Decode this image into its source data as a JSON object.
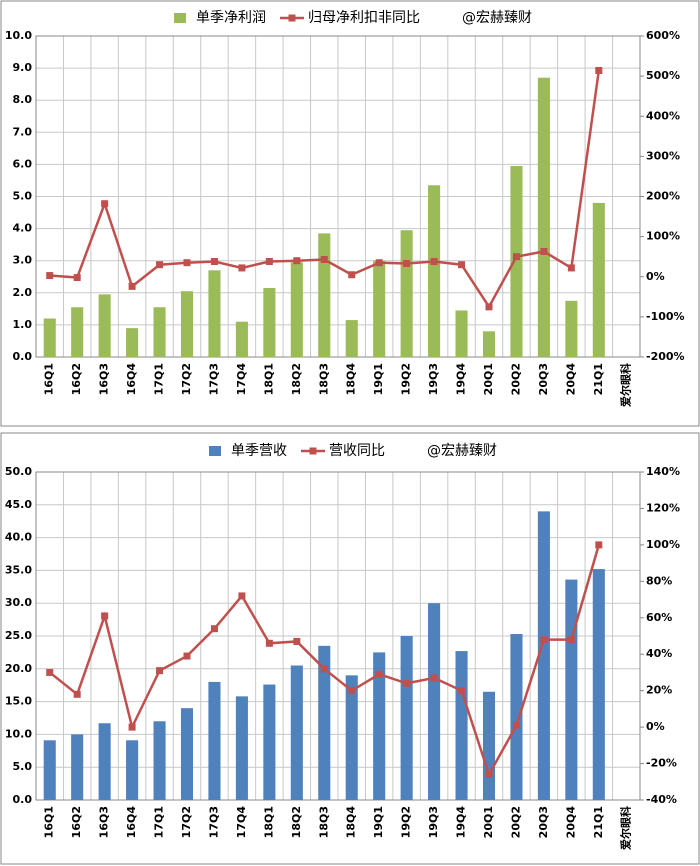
{
  "chart_data": [
    {
      "type": "combo",
      "categories": [
        "16Q1",
        "16Q2",
        "16Q3",
        "16Q4",
        "17Q1",
        "17Q2",
        "17Q3",
        "17Q4",
        "18Q1",
        "18Q2",
        "18Q3",
        "18Q4",
        "19Q1",
        "19Q2",
        "19Q3",
        "19Q4",
        "20Q1",
        "20Q2",
        "20Q3",
        "20Q4",
        "21Q1",
        "爱尔眼科"
      ],
      "series": [
        {
          "name": "单季净利润",
          "type": "bar",
          "color": "#9bbb59",
          "axis": "y",
          "values": [
            1.2,
            1.55,
            1.95,
            0.9,
            1.55,
            2.05,
            2.7,
            1.1,
            2.15,
            2.95,
            3.85,
            1.15,
            3.0,
            3.95,
            5.35,
            1.45,
            0.8,
            5.95,
            8.7,
            1.75,
            4.8,
            null
          ]
        },
        {
          "name": "归母净利扣非同比",
          "type": "line",
          "color": "#c0504d",
          "axis": "y2",
          "values": [
            3,
            -2,
            182,
            -24,
            30,
            35,
            38,
            22,
            38,
            40,
            43,
            5,
            35,
            33,
            38,
            30,
            -75,
            50,
            63,
            22,
            514,
            null
          ]
        }
      ],
      "watermark": "@宏赫臻财",
      "ylim": [
        0,
        10
      ],
      "yticks": [
        {
          "value": 0,
          "label": "0.0"
        },
        {
          "value": 1,
          "label": "1.0"
        },
        {
          "value": 2,
          "label": "2.0"
        },
        {
          "value": 3,
          "label": "3.0"
        },
        {
          "value": 4,
          "label": "4.0"
        },
        {
          "value": 5,
          "label": "5.0"
        },
        {
          "value": 6,
          "label": "6.0"
        },
        {
          "value": 7,
          "label": "7.0"
        },
        {
          "value": 8,
          "label": "8.0"
        },
        {
          "value": 9,
          "label": "9.0"
        },
        {
          "value": 10,
          "label": "10.0"
        }
      ],
      "y2lim": [
        -200,
        600
      ],
      "y2ticks": [
        {
          "value": -200,
          "label": "-200%"
        },
        {
          "value": -100,
          "label": "-100%"
        },
        {
          "value": 0,
          "label": "0%"
        },
        {
          "value": 100,
          "label": "100%"
        },
        {
          "value": 200,
          "label": "200%"
        },
        {
          "value": 300,
          "label": "300%"
        },
        {
          "value": 400,
          "label": "400%"
        },
        {
          "value": 500,
          "label": "500%"
        },
        {
          "value": 600,
          "label": "600%"
        }
      ],
      "grid": true
    },
    {
      "type": "combo",
      "categories": [
        "16Q1",
        "16Q2",
        "16Q3",
        "16Q4",
        "17Q1",
        "17Q2",
        "17Q3",
        "17Q4",
        "18Q1",
        "18Q2",
        "18Q3",
        "18Q4",
        "19Q1",
        "19Q2",
        "19Q3",
        "19Q4",
        "20Q1",
        "20Q2",
        "20Q3",
        "20Q4",
        "21Q1",
        "爱尔眼科"
      ],
      "series": [
        {
          "name": "单季营收",
          "type": "bar",
          "color": "#4f81bd",
          "axis": "y",
          "values": [
            9.1,
            10.0,
            11.7,
            9.1,
            12.0,
            14.0,
            18.0,
            15.8,
            17.6,
            20.5,
            23.5,
            19.0,
            22.5,
            25.0,
            30.0,
            22.7,
            16.5,
            25.3,
            44.0,
            33.6,
            35.2,
            null
          ]
        },
        {
          "name": "营收同比",
          "type": "line",
          "color": "#c0504d",
          "axis": "y2",
          "values": [
            30,
            18,
            61,
            0,
            31,
            39,
            54,
            72,
            46,
            47,
            32,
            20,
            29,
            24,
            27,
            20,
            -26,
            1,
            48,
            48,
            100,
            null
          ]
        }
      ],
      "watermark": "@宏赫臻财",
      "ylim": [
        0,
        50
      ],
      "yticks": [
        {
          "value": 0,
          "label": "0.0"
        },
        {
          "value": 5,
          "label": "5.0"
        },
        {
          "value": 10,
          "label": "10.0"
        },
        {
          "value": 15,
          "label": "15.0"
        },
        {
          "value": 20,
          "label": "20.0"
        },
        {
          "value": 25,
          "label": "25.0"
        },
        {
          "value": 30,
          "label": "30.0"
        },
        {
          "value": 35,
          "label": "35.0"
        },
        {
          "value": 40,
          "label": "40.0"
        },
        {
          "value": 45,
          "label": "45.0"
        },
        {
          "value": 50,
          "label": "50.0"
        }
      ],
      "y2lim": [
        -40,
        140
      ],
      "y2ticks": [
        {
          "value": -40,
          "label": "-40%"
        },
        {
          "value": -20,
          "label": "-20%"
        },
        {
          "value": 0,
          "label": "0%"
        },
        {
          "value": 20,
          "label": "20%"
        },
        {
          "value": 40,
          "label": "40%"
        },
        {
          "value": 60,
          "label": "60%"
        },
        {
          "value": 80,
          "label": "80%"
        },
        {
          "value": 100,
          "label": "100%"
        },
        {
          "value": 120,
          "label": "120%"
        },
        {
          "value": 140,
          "label": "140%"
        }
      ],
      "grid": true
    }
  ]
}
